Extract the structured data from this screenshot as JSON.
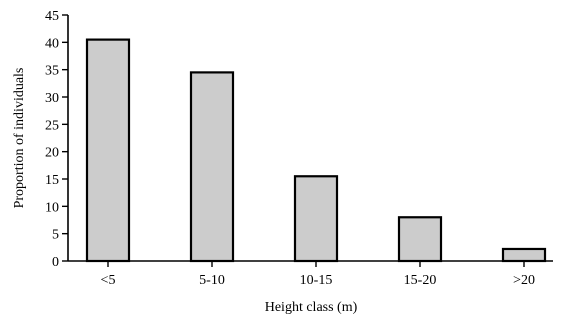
{
  "chart_data": {
    "type": "bar",
    "categories": [
      "<5",
      "5-10",
      "10-15",
      "15-20",
      ">20"
    ],
    "values": [
      40.5,
      34.5,
      15.5,
      8,
      2.2
    ],
    "title": "",
    "xlabel": "Height class (m)",
    "ylabel": "Proportion of individuals",
    "ylim": [
      0,
      45
    ],
    "yticks": [
      0,
      5,
      10,
      15,
      20,
      25,
      30,
      35,
      40,
      45
    ],
    "grid": false,
    "bar_color": "#cccccc",
    "edge_color": "#000000"
  }
}
